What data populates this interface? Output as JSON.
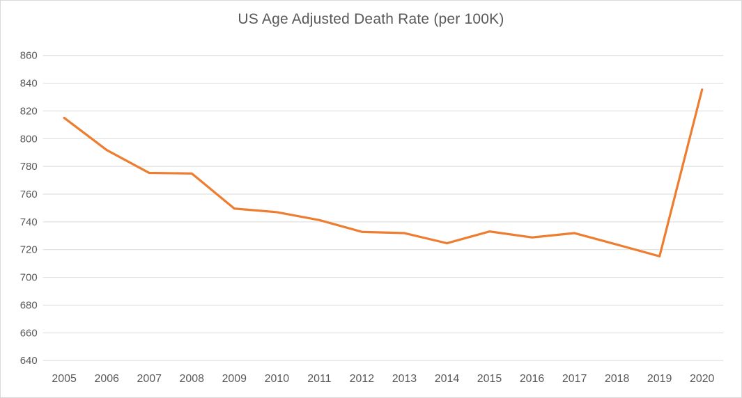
{
  "chart_data": {
    "type": "line",
    "title": "US Age Adjusted Death Rate (per 100K)",
    "x": [
      "2005",
      "2006",
      "2007",
      "2008",
      "2009",
      "2010",
      "2011",
      "2012",
      "2013",
      "2014",
      "2015",
      "2016",
      "2017",
      "2018",
      "2019",
      "2020"
    ],
    "values": [
      815.0,
      791.8,
      775.3,
      774.9,
      749.6,
      747.0,
      741.3,
      732.8,
      731.9,
      724.6,
      733.1,
      728.8,
      731.9,
      723.6,
      715.2,
      835.4
    ],
    "xlabel": "",
    "ylabel": "",
    "ylim": [
      640,
      860
    ],
    "ytick_step": 20,
    "yticks": [
      640,
      660,
      680,
      700,
      720,
      740,
      760,
      780,
      800,
      820,
      840,
      860
    ],
    "grid": true,
    "legend": false,
    "style": {
      "line_color": "#ED7D31",
      "grid_color": "#D9D9D9",
      "text_color": "#595959",
      "border_color": "#D9D9D9",
      "background": "#FFFFFF"
    }
  }
}
